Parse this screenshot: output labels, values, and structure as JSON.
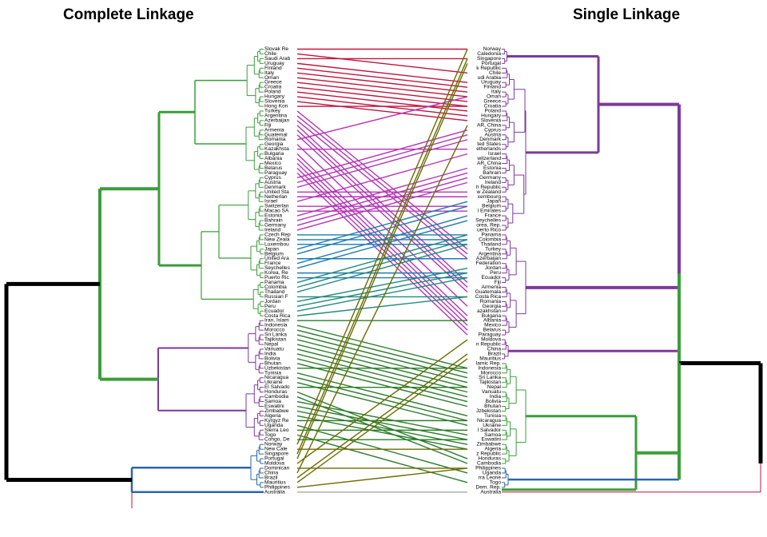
{
  "chart_data": {
    "type": "tanglegram",
    "left_title": "Complete Linkage",
    "right_title": "Single Linkage",
    "left_order": [
      "Slovak Re",
      "Chile",
      "Saudi Arab",
      "Uruguay",
      "Finland",
      "Italy",
      "Oman",
      "Greece",
      "Croatia",
      "Poland",
      "Hungary",
      "Slovenia",
      "Hong Kon",
      "Turkey",
      "Argentina",
      "Azerbaijan",
      "Fiji",
      "Armenia",
      "Guatemal",
      "Romania",
      "Georgia",
      "Kazakhsta",
      "Bulgaria",
      "Albania",
      "Mexico",
      "Belarus",
      "Paraguay",
      "Cyprus",
      "Austria",
      "Denmark",
      "United Sta",
      "Netherlan",
      "Israel",
      "Switzerlan",
      "Macao SA",
      "Estonia",
      "Bahrain",
      "Germany",
      "Ireland",
      "Czech Rep",
      "New Zeala",
      "Luxembou",
      "Japan",
      "Belgium",
      "United Ara",
      "France",
      "Seychelles",
      "Korea, Re",
      "Puerto Ric",
      "Panama",
      "Colombia",
      "Thailand",
      "Russian F",
      "Jordan",
      "Peru",
      "Ecuador",
      "Costa Rica",
      "Iran, Islam",
      "Indonesia",
      "Morocco",
      "Sri Lanka",
      "Tajikistan",
      "Nepal",
      "Vanuatu",
      "India",
      "Bolivia",
      "Bhutan",
      "Uzbekistan",
      "Tunisia",
      "Nicaragua",
      "Ukraine",
      "El Salvado",
      "Honduras",
      "Cambodia",
      "Samoa",
      "Eswatini",
      "Zimbabwe",
      "Algeria",
      "Kyrgyz Re",
      "Uganda",
      "Sierra Leo",
      "Togo",
      "Congo, De",
      "Norway",
      "New Cale",
      "Singapore",
      "Portugal",
      "Moldova",
      "Dominican",
      "China",
      "Brazil",
      "Mauritius",
      "Philippines",
      "Australia"
    ],
    "right_order": [
      "Norway",
      "Caledonia",
      "Singapore",
      "Portugal",
      "k Republic",
      "Chile",
      "udi Arabia",
      "Uruguay",
      "Finland",
      "Italy",
      "Oman",
      "Greece",
      "Croatia",
      "Poland",
      "Hungary",
      "Slovenia",
      "AR, China",
      "Cyprus",
      "Austria",
      "Denmark",
      "ted States",
      "etherlands",
      "Israel",
      "witzerland",
      "AR, China",
      "Estonia",
      "Bahrain",
      "Germany",
      "Ireland",
      "h Republic",
      "w Zealand",
      "xembourg",
      "Japan",
      "Belgium",
      "l Emirates",
      "France",
      "Seychelles",
      "orea, Rep.",
      "uerto Rico",
      "Panama",
      "Colombia",
      "Thailand",
      "Turkey",
      "Argentina",
      "Azerbaijan",
      "Federation",
      "Jordan",
      "Peru",
      "Ecuador",
      "Fiji",
      "Armenia",
      "Guatemala",
      "Costa Rica",
      "Romania",
      "Georgia",
      "azakhstan",
      "Bulgaria",
      "Albania",
      "Mexico",
      "Belarus",
      "Paraguay",
      "Moldova",
      "n Republic",
      "China",
      "Brazil",
      "Mauritius",
      "lamic Rep.",
      "Indonesia",
      "Morocco",
      "Sri Lanka",
      "Tajikistan",
      "Nepal",
      "Vanuatu",
      "India",
      "Bolivia",
      "Bhutan",
      "Jzbekistan",
      "Tunisia",
      "Nicaragua",
      "Ukraine",
      "l Salvador",
      "Samoa",
      "Eswatini",
      "Zimbabwe",
      "Algeria",
      "z Republic",
      "Honduras",
      "Cambodia",
      "Philippines",
      "Uganda",
      "rra Leone",
      "Togo",
      "Dem. Rep.",
      "Australia"
    ],
    "legend": "none",
    "colors": {
      "green": "#3a9e3a",
      "purple": "#7d3a99",
      "blue": "#2e66a8",
      "black": "#000000",
      "pink": "#c0143c",
      "magenta": "#b534b8",
      "deep_blue": "#1f7ab0",
      "teal": "#1f8a7f",
      "dark_green": "#2a7d2a",
      "olive": "#6b6b00",
      "gray": "#aaaaaa"
    }
  }
}
